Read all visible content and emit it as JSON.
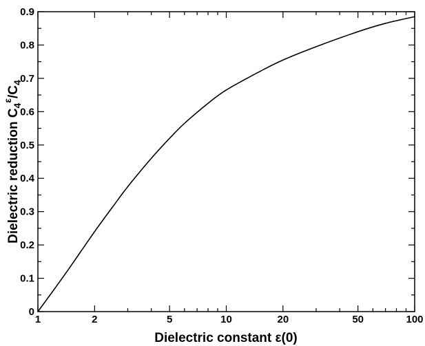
{
  "chart_data": {
    "type": "line",
    "title": "",
    "xlabel": "Dielectric constant ε(0)",
    "ylabel_parts": {
      "prefix": "Dielectric reduction C",
      "sub1": "4",
      "sup1": "ε",
      "slash": "/C",
      "sub2": "4"
    },
    "x_scale": "log",
    "xlim": [
      1,
      100
    ],
    "ylim": [
      0,
      0.9
    ],
    "x_ticks": [
      {
        "value": 1,
        "label": "1"
      },
      {
        "value": 2,
        "label": "2"
      },
      {
        "value": 5,
        "label": "5"
      },
      {
        "value": 10,
        "label": "10"
      },
      {
        "value": 20,
        "label": "20"
      },
      {
        "value": 50,
        "label": "50"
      },
      {
        "value": 100,
        "label": "100"
      }
    ],
    "y_ticks": [
      {
        "value": 0,
        "label": "0"
      },
      {
        "value": 0.1,
        "label": "0.1"
      },
      {
        "value": 0.2,
        "label": "0.2"
      },
      {
        "value": 0.3,
        "label": "0.3"
      },
      {
        "value": 0.4,
        "label": "0.4"
      },
      {
        "value": 0.5,
        "label": "0.5"
      },
      {
        "value": 0.6,
        "label": "0.6"
      },
      {
        "value": 0.7,
        "label": "0.7"
      },
      {
        "value": 0.8,
        "label": "0.8"
      },
      {
        "value": 0.9,
        "label": "0.9"
      }
    ],
    "grid": false,
    "series": [
      {
        "color": "#000000",
        "x": [
          1,
          1.25,
          1.5,
          2,
          2.5,
          3,
          4,
          5,
          6,
          8,
          10,
          15,
          20,
          30,
          50,
          70,
          100
        ],
        "y": [
          0,
          0.075,
          0.138,
          0.24,
          0.315,
          0.375,
          0.46,
          0.52,
          0.565,
          0.625,
          0.665,
          0.72,
          0.755,
          0.795,
          0.84,
          0.865,
          0.885
        ]
      }
    ]
  }
}
